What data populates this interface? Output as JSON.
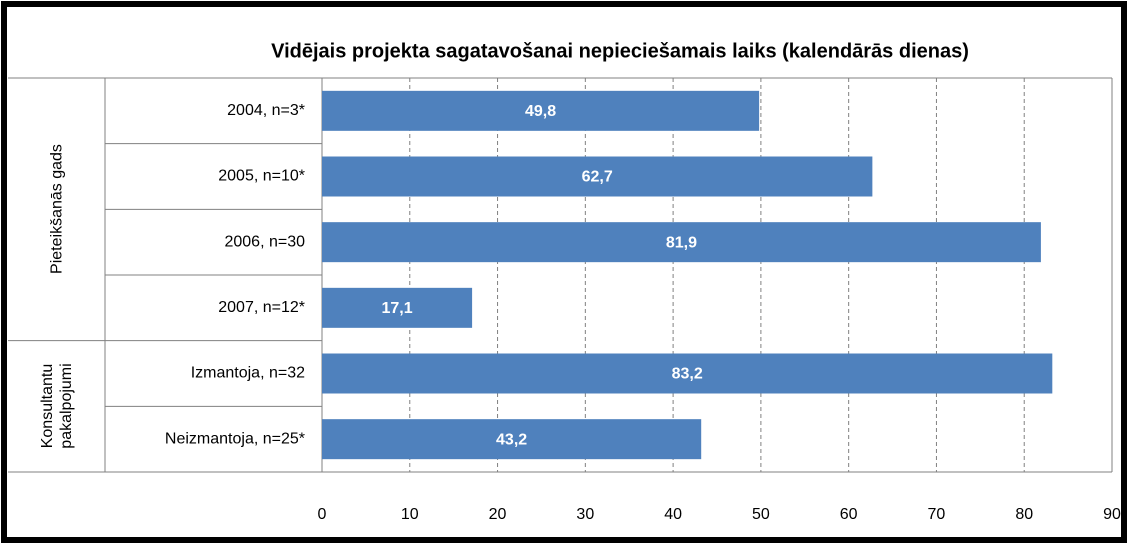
{
  "chart_data": {
    "type": "bar",
    "orientation": "horizontal",
    "title": "Vidējais projekta sagatavošanai  nepieciešamais laiks (kalendārās  dienas)",
    "color": "#4f81bd",
    "groups": [
      {
        "name": "Pieteikšanās gads",
        "categories": [
          "2004, n=3*",
          "2005, n=10*",
          "2006, n=30",
          "2007, n=12*"
        ],
        "values": [
          49.8,
          62.7,
          81.9,
          17.1
        ],
        "value_labels": [
          "49,8",
          "62,7",
          "81,9",
          "17,1"
        ]
      },
      {
        "name": "Konsultantu pakalpojumi",
        "categories": [
          "Izmantoja, n=32",
          "Neizmantoja, n=25*"
        ],
        "values": [
          83.2,
          43.2
        ],
        "value_labels": [
          "83,2",
          "43,2"
        ]
      }
    ],
    "xlim": [
      0,
      90
    ],
    "xticks": [
      0,
      10,
      20,
      30,
      40,
      50,
      60,
      70,
      80,
      90
    ],
    "grid": true
  }
}
